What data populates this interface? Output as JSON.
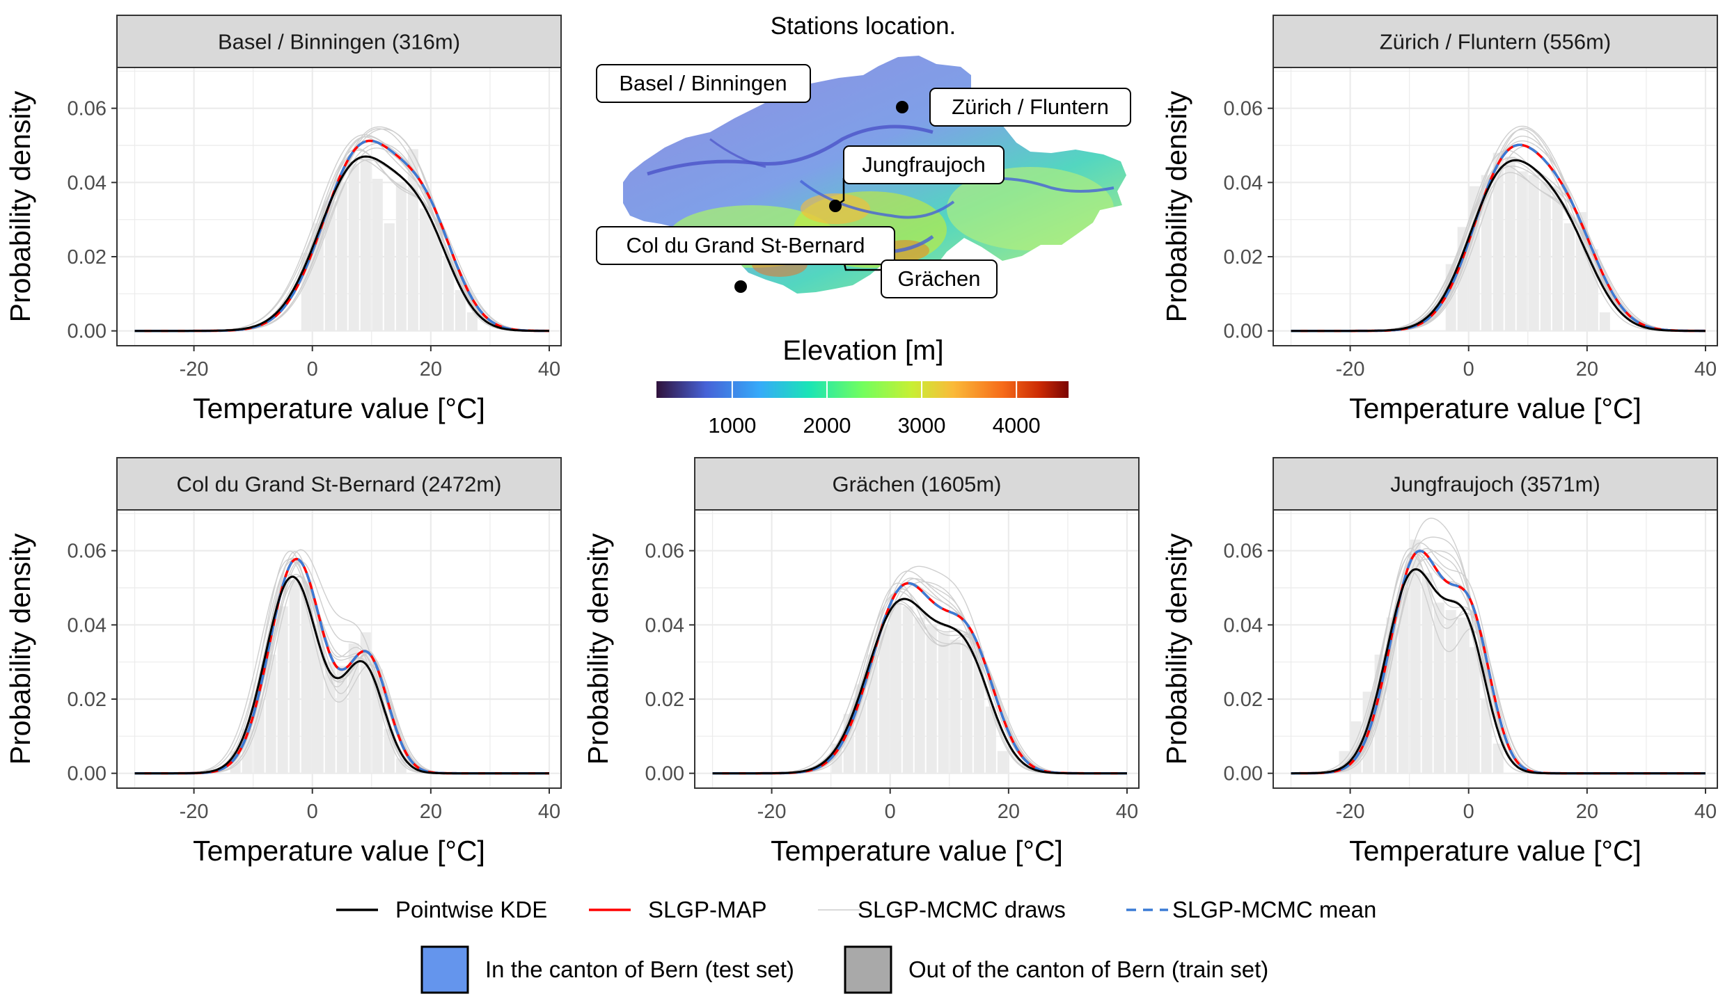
{
  "colors": {
    "kde": "#000000",
    "map": "#ff0000",
    "mcmc_draws": "#c8c8c8",
    "mcmc_mean": "#3a7bd5",
    "histogram": "#ebebeb",
    "strip_bg": "#d9d9d9",
    "panel_border": "#333333",
    "grid": "#ebebeb",
    "test_fill": "#6495ed",
    "train_fill": "#a9a9a9"
  },
  "map_inset": {
    "title": "Stations location.",
    "colorbar_title": "Elevation [m]",
    "colorbar_ticks": [
      "1000",
      "2000",
      "3000",
      "4000"
    ],
    "colorbar_range": [
      200,
      4550
    ],
    "stations": [
      {
        "name": "Basel / Binningen",
        "has_point": false
      },
      {
        "name": "Zürich / Fluntern",
        "has_point": true
      },
      {
        "name": "Jungfraujoch",
        "has_point": true
      },
      {
        "name": "Col du Grand St-Bernard",
        "has_point": true
      },
      {
        "name": "Grächen",
        "has_point": false
      }
    ]
  },
  "legend": {
    "lines": [
      {
        "key": "kde",
        "label": "Pointwise KDE",
        "style": "solid",
        "color": "#000000"
      },
      {
        "key": "map",
        "label": "SLGP-MAP",
        "style": "solid",
        "color": "#ff0000"
      },
      {
        "key": "draws",
        "label": "SLGP-MCMC draws",
        "style": "solid",
        "color": "#d3d3d3"
      },
      {
        "key": "mean",
        "label": "SLGP-MCMC mean",
        "style": "dashed",
        "color": "#3a7bd5"
      }
    ],
    "fills": [
      {
        "label": "In the canton of Bern (test set)",
        "color": "#6495ed"
      },
      {
        "label": "Out of the canton of Bern (train set)",
        "color": "#a9a9a9"
      }
    ]
  },
  "chart_data": [
    {
      "type": "line",
      "title": "Basel / Binningen (316m)",
      "xlabel": "Temperature value [°C]",
      "ylabel": "Probability density",
      "xlim": [
        -33,
        42
      ],
      "ylim": [
        -0.004,
        0.071
      ],
      "xticks": [
        "-20",
        "0",
        "20",
        "40"
      ],
      "yticks": [
        "0.00",
        "0.02",
        "0.04",
        "0.06"
      ],
      "modes": [
        {
          "mu": 8,
          "sigma": 6.5,
          "w": 0.65
        },
        {
          "mu": 19,
          "sigma": 5,
          "w": 0.35
        }
      ],
      "peak": 0.047,
      "histogram": [
        {
          "x": -1,
          "y": 0.021
        },
        {
          "x": 1,
          "y": 0.029
        },
        {
          "x": 3,
          "y": 0.035
        },
        {
          "x": 5,
          "y": 0.04
        },
        {
          "x": 7,
          "y": 0.045
        },
        {
          "x": 9,
          "y": 0.047
        },
        {
          "x": 11,
          "y": 0.041
        },
        {
          "x": 13,
          "y": 0.029
        },
        {
          "x": 15,
          "y": 0.04
        },
        {
          "x": 17,
          "y": 0.049
        },
        {
          "x": 19,
          "y": 0.033
        },
        {
          "x": 21,
          "y": 0.029
        },
        {
          "x": 23,
          "y": 0.02
        },
        {
          "x": 25,
          "y": 0.011
        },
        {
          "x": 27,
          "y": 0.005
        }
      ],
      "grid": true
    },
    {
      "type": "line",
      "title": "Zürich / Fluntern (556m)",
      "xlabel": "Temperature value [°C]",
      "ylabel": "Probability density",
      "xlim": [
        -33,
        42
      ],
      "ylim": [
        -0.004,
        0.071
      ],
      "xticks": [
        "-20",
        "0",
        "20",
        "40"
      ],
      "yticks": [
        "0.00",
        "0.02",
        "0.04",
        "0.06"
      ],
      "modes": [
        {
          "mu": 6,
          "sigma": 5.8,
          "w": 0.6
        },
        {
          "mu": 16,
          "sigma": 5.5,
          "w": 0.4
        }
      ],
      "peak": 0.046,
      "histogram": [
        {
          "x": -3,
          "y": 0.018
        },
        {
          "x": -1,
          "y": 0.028
        },
        {
          "x": 1,
          "y": 0.039
        },
        {
          "x": 3,
          "y": 0.042
        },
        {
          "x": 5,
          "y": 0.048
        },
        {
          "x": 7,
          "y": 0.047
        },
        {
          "x": 9,
          "y": 0.043
        },
        {
          "x": 11,
          "y": 0.042
        },
        {
          "x": 13,
          "y": 0.04
        },
        {
          "x": 15,
          "y": 0.039
        },
        {
          "x": 17,
          "y": 0.029
        },
        {
          "x": 19,
          "y": 0.032
        },
        {
          "x": 21,
          "y": 0.022
        },
        {
          "x": 23,
          "y": 0.005
        }
      ],
      "grid": true
    },
    {
      "type": "line",
      "title": "Col du Grand St-Bernard (2472m)",
      "xlabel": "Temperature value [°C]",
      "ylabel": "Probability density",
      "xlim": [
        -33,
        42
      ],
      "ylim": [
        -0.004,
        0.071
      ],
      "xticks": [
        "-20",
        "0",
        "20",
        "40"
      ],
      "yticks": [
        "0.00",
        "0.02",
        "0.04",
        "0.06"
      ],
      "modes": [
        {
          "mu": -3,
          "sigma": 4.5,
          "w": 0.65
        },
        {
          "mu": 9,
          "sigma": 3.5,
          "w": 0.35
        }
      ],
      "peak": 0.053,
      "histogram": [
        {
          "x": -13,
          "y": 0.006
        },
        {
          "x": -11,
          "y": 0.012
        },
        {
          "x": -9,
          "y": 0.02
        },
        {
          "x": -7,
          "y": 0.032
        },
        {
          "x": -5,
          "y": 0.045
        },
        {
          "x": -3,
          "y": 0.052
        },
        {
          "x": -1,
          "y": 0.052
        },
        {
          "x": 1,
          "y": 0.04
        },
        {
          "x": 3,
          "y": 0.03
        },
        {
          "x": 5,
          "y": 0.029
        },
        {
          "x": 7,
          "y": 0.035
        },
        {
          "x": 9,
          "y": 0.038
        },
        {
          "x": 11,
          "y": 0.028
        },
        {
          "x": 13,
          "y": 0.012
        },
        {
          "x": 15,
          "y": 0.004
        }
      ],
      "grid": true
    },
    {
      "type": "line",
      "title": "Grächen (1605m)",
      "xlabel": "Temperature value [°C]",
      "ylabel": "Probability density",
      "xlim": [
        -33,
        42
      ],
      "ylim": [
        -0.004,
        0.071
      ],
      "xticks": [
        "-20",
        "0",
        "20",
        "40"
      ],
      "yticks": [
        "0.00",
        "0.02",
        "0.04",
        "0.06"
      ],
      "modes": [
        {
          "mu": 2,
          "sigma": 5.5,
          "w": 0.6
        },
        {
          "mu": 13,
          "sigma": 4.5,
          "w": 0.4
        }
      ],
      "peak": 0.047,
      "histogram": [
        {
          "x": -9,
          "y": 0.008
        },
        {
          "x": -7,
          "y": 0.016
        },
        {
          "x": -5,
          "y": 0.024
        },
        {
          "x": -3,
          "y": 0.032
        },
        {
          "x": -1,
          "y": 0.04
        },
        {
          "x": 1,
          "y": 0.046
        },
        {
          "x": 3,
          "y": 0.045
        },
        {
          "x": 5,
          "y": 0.042
        },
        {
          "x": 7,
          "y": 0.04
        },
        {
          "x": 9,
          "y": 0.038
        },
        {
          "x": 11,
          "y": 0.036
        },
        {
          "x": 13,
          "y": 0.038
        },
        {
          "x": 15,
          "y": 0.033
        },
        {
          "x": 17,
          "y": 0.018
        },
        {
          "x": 19,
          "y": 0.006
        }
      ],
      "grid": true
    },
    {
      "type": "line",
      "title": "Jungfraujoch (3571m)",
      "xlabel": "Temperature value [°C]",
      "ylabel": "Probability density",
      "xlim": [
        -33,
        42
      ],
      "ylim": [
        -0.004,
        0.071
      ],
      "xticks": [
        "-20",
        "0",
        "20",
        "40"
      ],
      "yticks": [
        "0.00",
        "0.02",
        "0.04",
        "0.06"
      ],
      "modes": [
        {
          "mu": -9,
          "sigma": 4.5,
          "w": 0.6
        },
        {
          "mu": 0,
          "sigma": 3.5,
          "w": 0.4
        }
      ],
      "peak": 0.055,
      "histogram": [
        {
          "x": -21,
          "y": 0.006
        },
        {
          "x": -19,
          "y": 0.014
        },
        {
          "x": -17,
          "y": 0.022
        },
        {
          "x": -15,
          "y": 0.032
        },
        {
          "x": -13,
          "y": 0.042
        },
        {
          "x": -11,
          "y": 0.05
        },
        {
          "x": -9,
          "y": 0.063
        },
        {
          "x": -7,
          "y": 0.054
        },
        {
          "x": -5,
          "y": 0.046
        },
        {
          "x": -3,
          "y": 0.044
        },
        {
          "x": -1,
          "y": 0.042
        },
        {
          "x": 1,
          "y": 0.034
        },
        {
          "x": 3,
          "y": 0.02
        },
        {
          "x": 5,
          "y": 0.008
        }
      ],
      "grid": true
    }
  ]
}
